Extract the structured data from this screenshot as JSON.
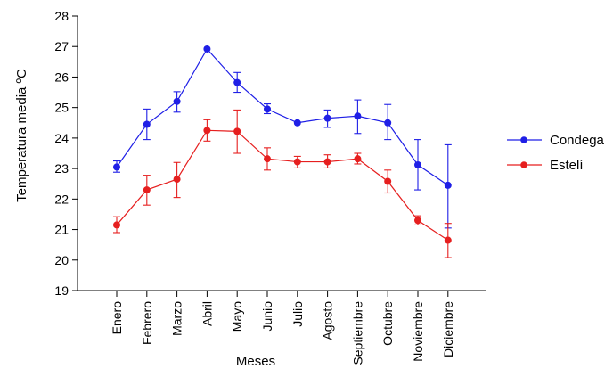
{
  "chart_data": {
    "type": "line",
    "title": "",
    "xlabel": "Meses",
    "ylabel": "Temperatura media ºC",
    "ylim": [
      19,
      28
    ],
    "yticks": [
      19,
      20,
      21,
      22,
      23,
      24,
      25,
      26,
      27,
      28
    ],
    "grid": false,
    "legend_position": "right",
    "error_bars": true,
    "categories": [
      "Enero",
      "Febrero",
      "Marzo",
      "Abril",
      "Mayo",
      "Junio",
      "Julio",
      "Agosto",
      "Septiembre",
      "Octubre",
      "Noviembre",
      "Diciembre"
    ],
    "series": [
      {
        "name": "Condega",
        "color": "#1f1fe6",
        "values": [
          23.05,
          24.45,
          25.2,
          26.92,
          25.82,
          24.95,
          24.5,
          24.65,
          24.72,
          24.5,
          23.12,
          22.45
        ],
        "error_low": [
          22.88,
          23.95,
          24.85,
          26.92,
          25.5,
          24.8,
          24.5,
          24.35,
          24.15,
          23.95,
          22.3,
          21.05
        ],
        "error_high": [
          23.25,
          24.95,
          25.52,
          26.92,
          26.15,
          25.12,
          24.5,
          24.92,
          25.25,
          25.1,
          23.95,
          23.78
        ]
      },
      {
        "name": "Estelí",
        "color": "#e61f1f",
        "values": [
          21.15,
          22.3,
          22.65,
          24.25,
          24.22,
          23.32,
          23.22,
          23.22,
          23.32,
          22.58,
          21.3,
          20.65
        ],
        "error_low": [
          20.9,
          21.8,
          22.05,
          23.9,
          23.5,
          22.95,
          23.02,
          23.02,
          23.15,
          22.2,
          21.15,
          20.08
        ],
        "error_high": [
          21.42,
          22.78,
          23.2,
          24.6,
          24.92,
          23.68,
          23.4,
          23.45,
          23.5,
          22.95,
          21.45,
          21.2
        ]
      }
    ]
  }
}
